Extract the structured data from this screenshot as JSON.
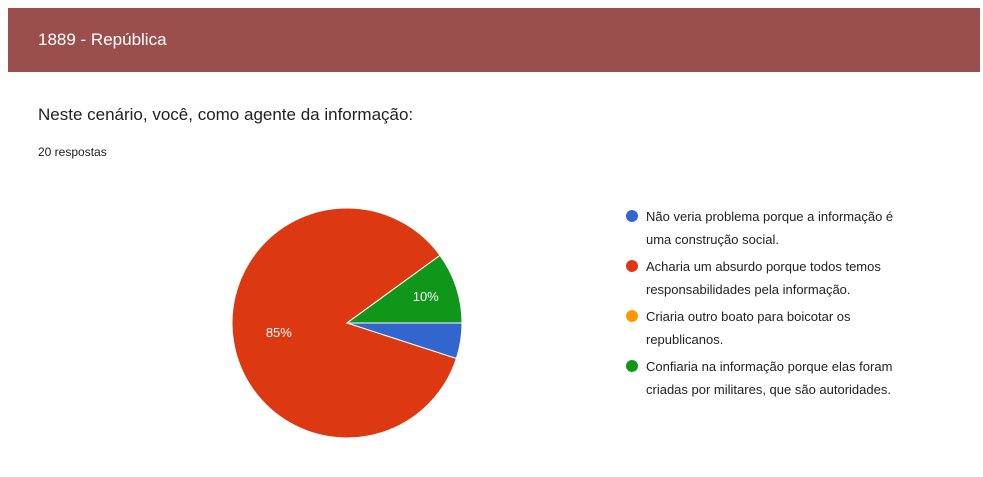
{
  "header": {
    "title": "1889 - República"
  },
  "chart_data": {
    "type": "pie",
    "title": "Neste cenário, você, como agente da informação:",
    "subtitle": "20 respostas",
    "categories": [
      "Não veria problema porque a informação é uma construção social.",
      "Acharia um absurdo porque todos temos responsabilidades pela informação.",
      "Criaria outro boato para boicotar os republicanos.",
      "Confiaria na informação porque elas foram criadas por militares, que são autoridades."
    ],
    "values": [
      5,
      85,
      0,
      10
    ],
    "value_labels": [
      null,
      "85%",
      null,
      "10%"
    ],
    "colors": [
      "#3366cc",
      "#dc3912",
      "#ff9900",
      "#109618"
    ],
    "legend": "right"
  }
}
